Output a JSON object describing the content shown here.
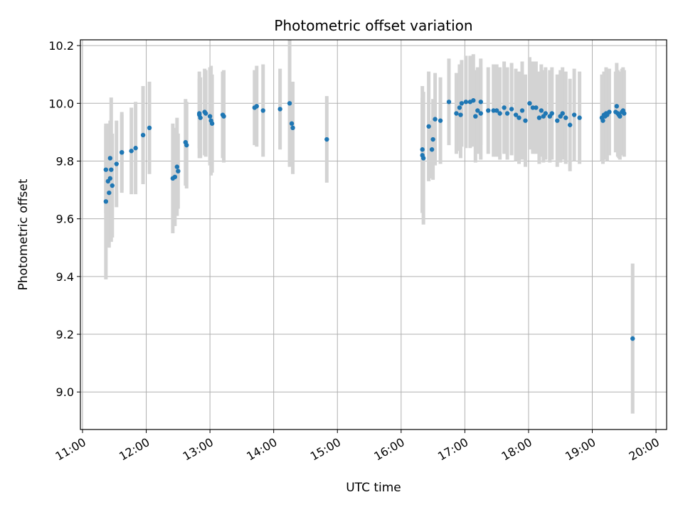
{
  "chart_data": {
    "type": "scatter",
    "title": "Photometric offset variation",
    "xlabel": "UTC time",
    "ylabel": "Photometric offset",
    "x_unit": "hours UTC",
    "xlim": [
      "10:58",
      "20:10"
    ],
    "ylim": [
      8.87,
      10.22
    ],
    "grid": true,
    "x_ticks": [
      "11:00",
      "12:00",
      "13:00",
      "14:00",
      "15:00",
      "16:00",
      "17:00",
      "18:00",
      "19:00",
      "20:00"
    ],
    "y_ticks": [
      "9.0",
      "9.2",
      "9.4",
      "9.6",
      "9.8",
      "10.0",
      "10.2"
    ],
    "colors": {
      "marker": "#1f77b4",
      "errorbar": "#d3d3d3",
      "grid": "#b0b0b0"
    },
    "series": [
      {
        "points": [
          {
            "x": "11:22",
            "y": 9.66,
            "err": 0.27
          },
          {
            "x": "11:22",
            "y": 9.77,
            "err": 0.15
          },
          {
            "x": "11:24",
            "y": 9.73,
            "err": 0.2
          },
          {
            "x": "11:25",
            "y": 9.69,
            "err": 0.19
          },
          {
            "x": "11:26",
            "y": 9.74,
            "err": 0.2
          },
          {
            "x": "11:26",
            "y": 9.81,
            "err": 0.12
          },
          {
            "x": "11:27",
            "y": 9.77,
            "err": 0.25
          },
          {
            "x": "11:28",
            "y": 9.715,
            "err": 0.18
          },
          {
            "x": "11:32",
            "y": 9.79,
            "err": 0.15
          },
          {
            "x": "11:37",
            "y": 9.83,
            "err": 0.14
          },
          {
            "x": "11:37",
            "y": 9.83,
            "err": 0.13
          },
          {
            "x": "11:46",
            "y": 9.835,
            "err": 0.15
          },
          {
            "x": "11:50",
            "y": 9.845,
            "err": 0.16
          },
          {
            "x": "11:57",
            "y": 9.89,
            "err": 0.17
          },
          {
            "x": "12:03",
            "y": 9.915,
            "err": 0.16
          },
          {
            "x": "12:25",
            "y": 9.74,
            "err": 0.19
          },
          {
            "x": "12:27",
            "y": 9.745,
            "err": 0.17
          },
          {
            "x": "12:29",
            "y": 9.78,
            "err": 0.17
          },
          {
            "x": "12:30",
            "y": 9.765,
            "err": 0.13
          },
          {
            "x": "12:37",
            "y": 9.865,
            "err": 0.15
          },
          {
            "x": "12:38",
            "y": 9.855,
            "err": 0.15
          },
          {
            "x": "12:50",
            "y": 9.96,
            "err": 0.15
          },
          {
            "x": "12:50",
            "y": 9.965,
            "err": 0.12
          },
          {
            "x": "12:51",
            "y": 9.95,
            "err": 0.14
          },
          {
            "x": "12:55",
            "y": 9.97,
            "err": 0.15
          },
          {
            "x": "12:56",
            "y": 9.965,
            "err": 0.15
          },
          {
            "x": "13:00",
            "y": 9.955,
            "err": 0.17
          },
          {
            "x": "13:01",
            "y": 9.94,
            "err": 0.19
          },
          {
            "x": "13:02",
            "y": 9.93,
            "err": 0.17
          },
          {
            "x": "13:12",
            "y": 9.96,
            "err": 0.15
          },
          {
            "x": "13:13",
            "y": 9.955,
            "err": 0.16
          },
          {
            "x": "13:42",
            "y": 9.985,
            "err": 0.13
          },
          {
            "x": "13:44",
            "y": 9.99,
            "err": 0.14
          },
          {
            "x": "13:50",
            "y": 9.975,
            "err": 0.16
          },
          {
            "x": "14:06",
            "y": 9.98,
            "err": 0.14
          },
          {
            "x": "14:15",
            "y": 10.0,
            "err": 0.22
          },
          {
            "x": "14:17",
            "y": 9.93,
            "err": 0.13
          },
          {
            "x": "14:18",
            "y": 9.915,
            "err": 0.16
          },
          {
            "x": "14:50",
            "y": 9.875,
            "err": 0.15
          },
          {
            "x": "16:20",
            "y": 9.84,
            "err": 0.22
          },
          {
            "x": "16:20",
            "y": 9.82,
            "err": 0.2
          },
          {
            "x": "16:21",
            "y": 9.81,
            "err": 0.23
          },
          {
            "x": "16:26",
            "y": 9.92,
            "err": 0.19
          },
          {
            "x": "16:29",
            "y": 9.84,
            "err": 0.1
          },
          {
            "x": "16:30",
            "y": 9.875,
            "err": 0.14
          },
          {
            "x": "16:32",
            "y": 9.945,
            "err": 0.16
          },
          {
            "x": "16:37",
            "y": 9.94,
            "err": 0.15
          },
          {
            "x": "16:45",
            "y": 10.005,
            "err": 0.15
          },
          {
            "x": "16:52",
            "y": 9.965,
            "err": 0.14
          },
          {
            "x": "16:55",
            "y": 9.985,
            "err": 0.15
          },
          {
            "x": "16:56",
            "y": 9.96,
            "err": 0.15
          },
          {
            "x": "16:57",
            "y": 10.0,
            "err": 0.15
          },
          {
            "x": "17:01",
            "y": 10.005,
            "err": 0.16
          },
          {
            "x": "17:05",
            "y": 10.005,
            "err": 0.16
          },
          {
            "x": "17:08",
            "y": 10.01,
            "err": 0.16
          },
          {
            "x": "17:10",
            "y": 9.955,
            "err": 0.16
          },
          {
            "x": "17:12",
            "y": 9.975,
            "err": 0.15
          },
          {
            "x": "17:15",
            "y": 9.965,
            "err": 0.16
          },
          {
            "x": "17:15",
            "y": 10.005,
            "err": 0.15
          },
          {
            "x": "17:22",
            "y": 9.975,
            "err": 0.15
          },
          {
            "x": "17:27",
            "y": 9.975,
            "err": 0.16
          },
          {
            "x": "17:30",
            "y": 9.975,
            "err": 0.16
          },
          {
            "x": "17:33",
            "y": 9.965,
            "err": 0.16
          },
          {
            "x": "17:37",
            "y": 9.985,
            "err": 0.16
          },
          {
            "x": "17:40",
            "y": 9.965,
            "err": 0.16
          },
          {
            "x": "17:44",
            "y": 9.98,
            "err": 0.16
          },
          {
            "x": "17:48",
            "y": 9.96,
            "err": 0.16
          },
          {
            "x": "17:51",
            "y": 9.95,
            "err": 0.16
          },
          {
            "x": "17:54",
            "y": 9.975,
            "err": 0.17
          },
          {
            "x": "17:57",
            "y": 9.94,
            "err": 0.16
          },
          {
            "x": "18:01",
            "y": 10.0,
            "err": 0.16
          },
          {
            "x": "18:04",
            "y": 9.985,
            "err": 0.16
          },
          {
            "x": "18:07",
            "y": 9.985,
            "err": 0.16
          },
          {
            "x": "18:10",
            "y": 9.95,
            "err": 0.16
          },
          {
            "x": "18:12",
            "y": 9.975,
            "err": 0.16
          },
          {
            "x": "18:14",
            "y": 9.955,
            "err": 0.16
          },
          {
            "x": "18:16",
            "y": 9.965,
            "err": 0.16
          },
          {
            "x": "18:20",
            "y": 9.955,
            "err": 0.16
          },
          {
            "x": "18:22",
            "y": 9.965,
            "err": 0.16
          },
          {
            "x": "18:27",
            "y": 9.94,
            "err": 0.16
          },
          {
            "x": "18:30",
            "y": 9.955,
            "err": 0.16
          },
          {
            "x": "18:32",
            "y": 9.965,
            "err": 0.16
          },
          {
            "x": "18:35",
            "y": 9.95,
            "err": 0.16
          },
          {
            "x": "18:39",
            "y": 9.925,
            "err": 0.16
          },
          {
            "x": "18:43",
            "y": 9.96,
            "err": 0.16
          },
          {
            "x": "18:48",
            "y": 9.95,
            "err": 0.16
          },
          {
            "x": "19:09",
            "y": 9.95,
            "err": 0.15
          },
          {
            "x": "19:10",
            "y": 9.94,
            "err": 0.15
          },
          {
            "x": "19:11",
            "y": 9.96,
            "err": 0.15
          },
          {
            "x": "19:12",
            "y": 9.955,
            "err": 0.15
          },
          {
            "x": "19:13",
            "y": 9.965,
            "err": 0.16
          },
          {
            "x": "19:14",
            "y": 9.96,
            "err": 0.16
          },
          {
            "x": "19:16",
            "y": 9.97,
            "err": 0.15
          },
          {
            "x": "19:22",
            "y": 9.97,
            "err": 0.14
          },
          {
            "x": "19:23",
            "y": 9.99,
            "err": 0.15
          },
          {
            "x": "19:24",
            "y": 9.965,
            "err": 0.15
          },
          {
            "x": "19:25",
            "y": 9.96,
            "err": 0.15
          },
          {
            "x": "19:26",
            "y": 9.955,
            "err": 0.15
          },
          {
            "x": "19:28",
            "y": 9.97,
            "err": 0.15
          },
          {
            "x": "19:29",
            "y": 9.975,
            "err": 0.15
          },
          {
            "x": "19:30",
            "y": 9.965,
            "err": 0.15
          },
          {
            "x": "19:38",
            "y": 9.185,
            "err": 0.26
          }
        ]
      }
    ]
  }
}
